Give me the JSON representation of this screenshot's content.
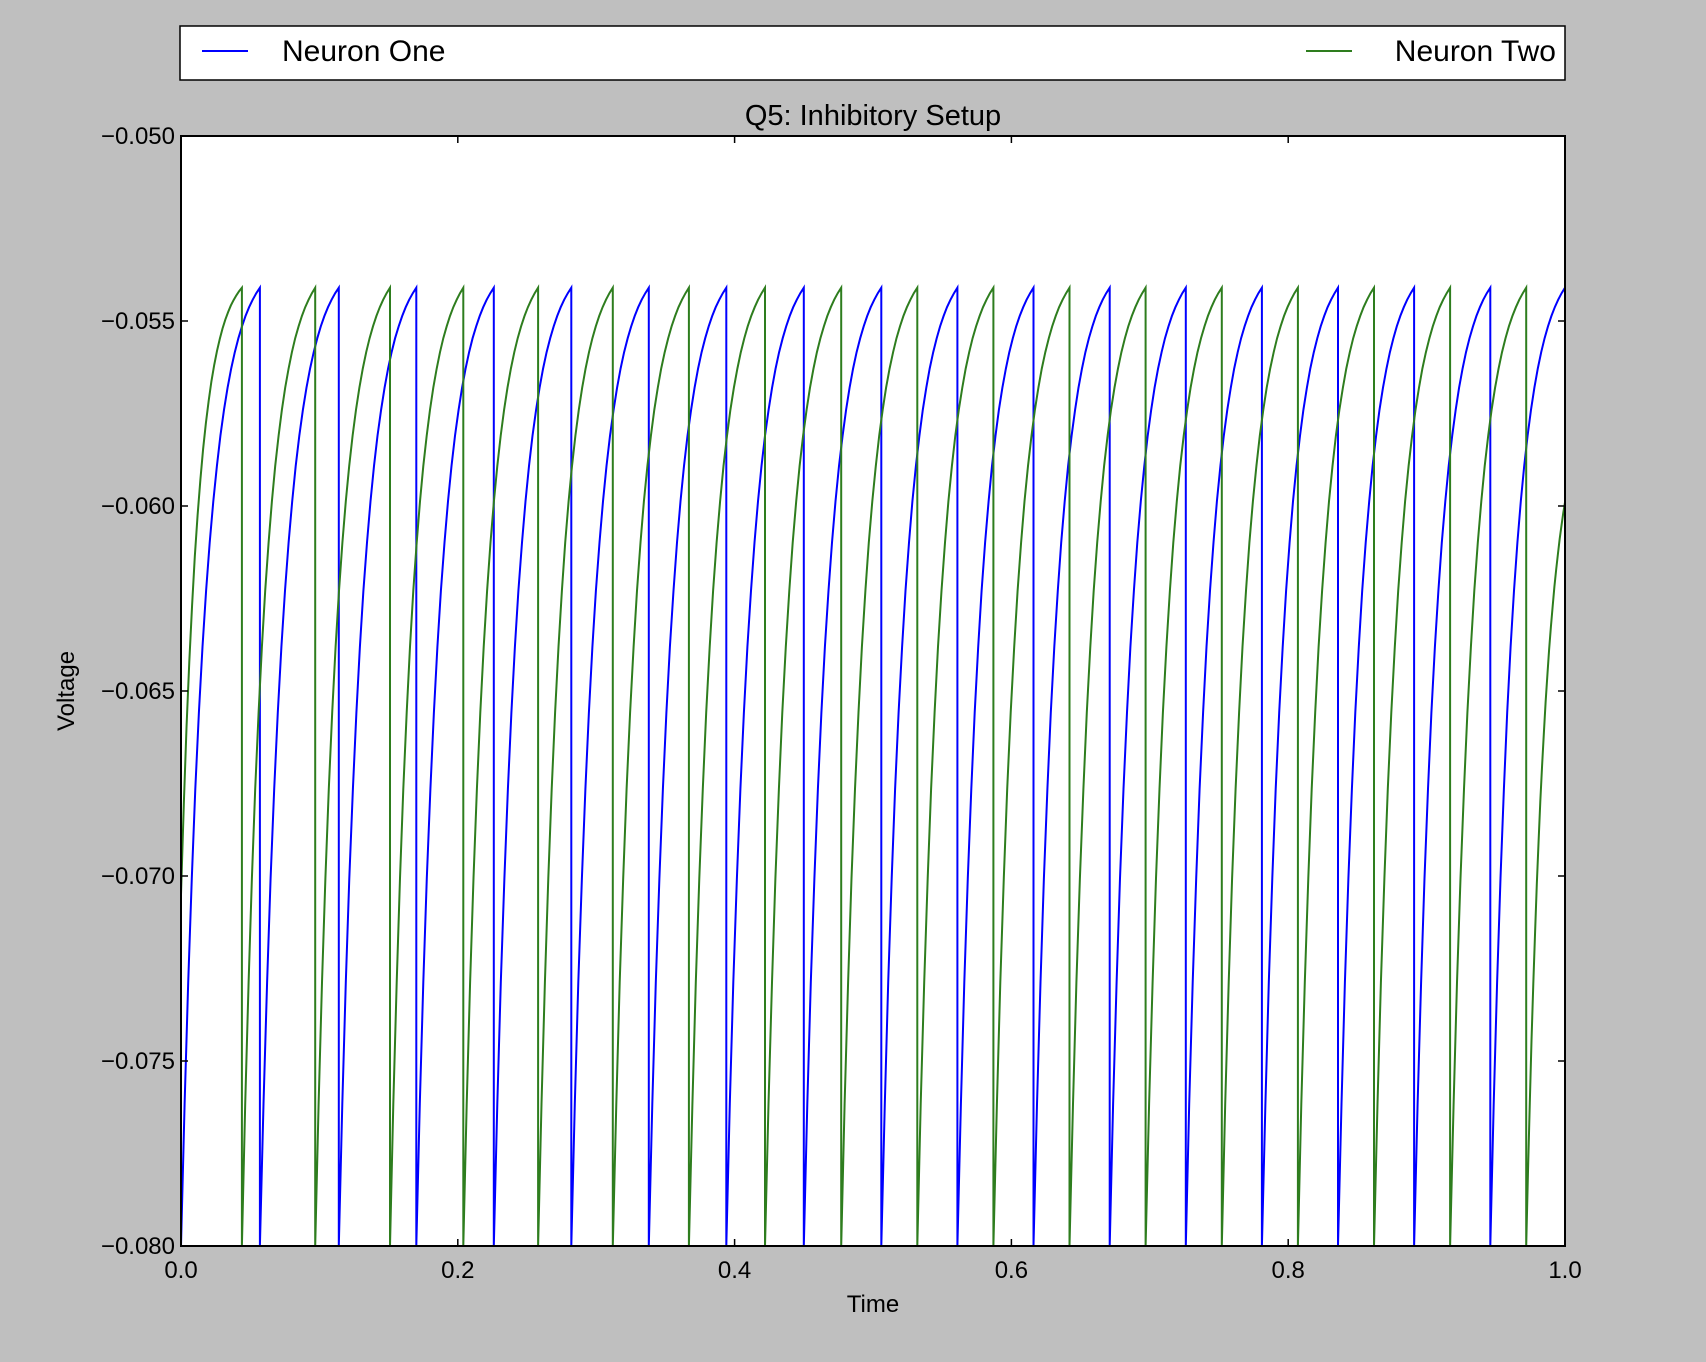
{
  "chart_data": {
    "type": "line",
    "title": "Q5: Inhibitory Setup",
    "xlabel": "Time",
    "ylabel": "Voltage",
    "xlim": [
      0.0,
      1.0
    ],
    "ylim": [
      -0.08,
      -0.05
    ],
    "x_ticks": [
      0.0,
      0.2,
      0.4,
      0.6,
      0.8,
      1.0
    ],
    "x_tick_labels": [
      "0.0",
      "0.2",
      "0.4",
      "0.6",
      "0.8",
      "1.0"
    ],
    "y_ticks": [
      -0.05,
      -0.055,
      -0.06,
      -0.065,
      -0.07,
      -0.075,
      -0.08
    ],
    "y_tick_labels": [
      "−0.050",
      "−0.055",
      "−0.060",
      "−0.065",
      "−0.070",
      "−0.075",
      "−0.080"
    ],
    "grid": false,
    "legend": {
      "placement": "above-plot, spanning full width",
      "columns": 2
    },
    "reset_voltage": -0.08,
    "threshold_voltage": -0.0541,
    "series": [
      {
        "name": "Neuron One",
        "color": "#0000ff",
        "start_value": -0.08,
        "spike_times": [
          0.057,
          0.114,
          0.17,
          0.226,
          0.282,
          0.338,
          0.394,
          0.45,
          0.506,
          0.561,
          0.616,
          0.671,
          0.726,
          0.781,
          0.836,
          0.891,
          0.946,
          1.0
        ],
        "end_value": -0.0541
      },
      {
        "name": "Neuron Two",
        "color": "#2e7d1e",
        "start_value": -0.0705,
        "spike_times": [
          0.044,
          0.097,
          0.151,
          0.204,
          0.258,
          0.312,
          0.367,
          0.422,
          0.477,
          0.532,
          0.587,
          0.642,
          0.697,
          0.752,
          0.807,
          0.862,
          0.917,
          0.972
        ],
        "end_value": -0.0599
      }
    ]
  }
}
